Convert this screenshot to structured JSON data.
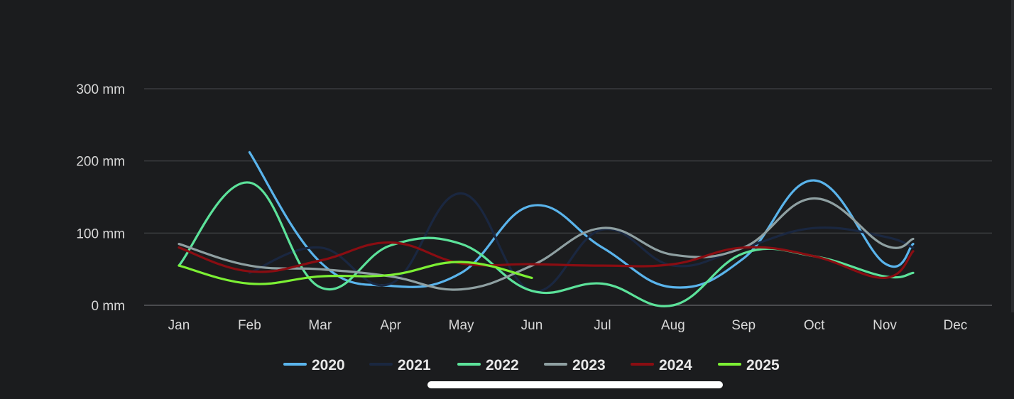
{
  "chart_data": {
    "type": "line",
    "title": "",
    "xlabel": "",
    "ylabel": "",
    "unit": "mm",
    "categories": [
      "Jan",
      "Feb",
      "Mar",
      "Apr",
      "May",
      "Jun",
      "Jul",
      "Aug",
      "Sep",
      "Oct",
      "Nov",
      "Dec"
    ],
    "y_ticks": [
      "0 mm",
      "100 mm",
      "200 mm",
      "300 mm"
    ],
    "y_tick_values": [
      0,
      100,
      200,
      300
    ],
    "ylim": [
      0,
      300
    ],
    "grid": true,
    "legend_position": "bottom",
    "series": [
      {
        "name": "2020",
        "color": "#5ab4ec",
        "values": [
          null,
          212,
          60,
          27,
          45,
          138,
          80,
          25,
          65,
          173,
          58,
          85
        ]
      },
      {
        "name": "2021",
        "color": "#1a2740",
        "values": [
          null,
          45,
          80,
          30,
          155,
          20,
          105,
          55,
          80,
          107,
          95,
          80
        ]
      },
      {
        "name": "2022",
        "color": "#5ce29a",
        "values": [
          55,
          170,
          25,
          83,
          85,
          20,
          30,
          0,
          72,
          68,
          40,
          45
        ]
      },
      {
        "name": "2023",
        "color": "#8fa0a2",
        "values": [
          85,
          55,
          50,
          40,
          22,
          55,
          107,
          70,
          80,
          148,
          83,
          92
        ]
      },
      {
        "name": "2024",
        "color": "#8a0d12",
        "values": [
          80,
          47,
          62,
          87,
          58,
          57,
          55,
          57,
          80,
          68,
          38,
          75
        ]
      },
      {
        "name": "2025",
        "color": "#7cf034",
        "values": [
          55,
          30,
          40,
          42,
          60,
          38,
          null,
          null,
          null,
          null,
          null,
          null
        ]
      }
    ]
  }
}
